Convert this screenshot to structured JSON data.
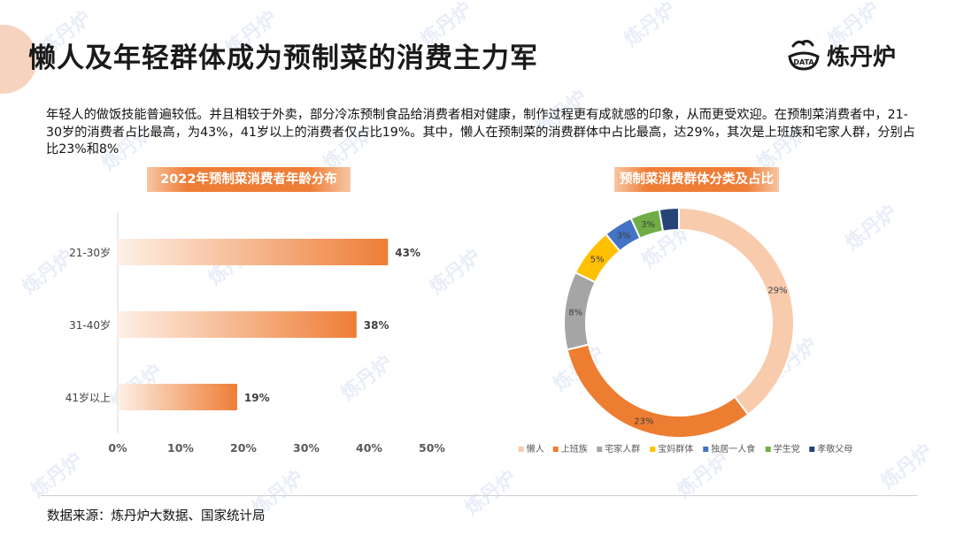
{
  "header": {
    "title": "懒人及年轻群体成为预制菜的消费主力军",
    "logo_text": "炼丹炉",
    "logo_mark_text": "DATA"
  },
  "description": "年轻人的做饭技能普遍较低。并且相较于外卖，部分冷冻预制食品给消费者相对健康，制作过程更有成就感的印象，从而更受欢迎。在预制菜消费者中，21-30岁的消费者占比最高，为43%，41岁以上的消费者仅占比19%。其中，懒人在预制菜的消费群体中占比最高，达29%，其次是上班族和宅家人群，分别占比23%和8%",
  "watermark": "炼丹炉",
  "footer": {
    "source": "数据来源：炼丹炉大数据、国家统计局"
  },
  "colors": {
    "accent": "#ee7d36",
    "title_bar": "#ee7d36",
    "deco": "#f6d3bf"
  },
  "chart_data": [
    {
      "type": "bar",
      "orientation": "horizontal",
      "title": "2022年预制菜消费者年龄分布",
      "categories": [
        "21-30岁",
        "31-40岁",
        "41岁以上"
      ],
      "values": [
        43,
        38,
        19
      ],
      "data_labels": [
        "43%",
        "38%",
        "19%"
      ],
      "xlim": [
        0,
        50
      ],
      "x_ticks": [
        "0%",
        "10%",
        "20%",
        "30%",
        "40%",
        "50%"
      ],
      "grid": false,
      "bar_color": "#ee7d36"
    },
    {
      "type": "pie",
      "style": "donut",
      "title": "预制菜消费群体分类及占比",
      "categories": [
        "懒人",
        "上班族",
        "宅家人群",
        "宝妈群体",
        "独居一人食",
        "学生党",
        "孝敬父母"
      ],
      "values": [
        29,
        23,
        8,
        5,
        3,
        3,
        2
      ],
      "data_labels": [
        "29%",
        "23%",
        "8%",
        "5%",
        "3%",
        "3%",
        ""
      ],
      "colors": [
        "#f8cbad",
        "#ed7d31",
        "#a5a5a5",
        "#ffc000",
        "#4472c4",
        "#70ad47",
        "#264478"
      ],
      "legend_position": "bottom"
    }
  ]
}
